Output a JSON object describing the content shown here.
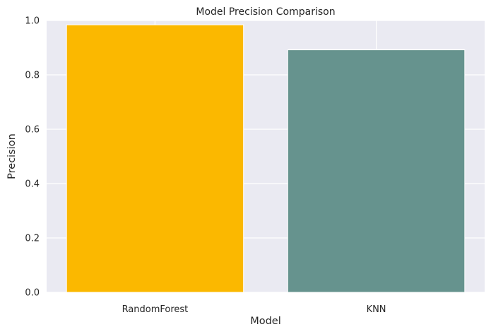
{
  "chart_data": {
    "type": "bar",
    "title": "Model Precision Comparison",
    "xlabel": "Model",
    "ylabel": "Precision",
    "categories": [
      "RandomForest",
      "KNN"
    ],
    "values": [
      0.984,
      0.892
    ],
    "bar_colors": [
      "#FBB800",
      "#66938E"
    ],
    "ylim": [
      0,
      1.0
    ],
    "yticks": [
      "0.0",
      "0.2",
      "0.4",
      "0.6",
      "0.8",
      "1.0"
    ],
    "grid": true,
    "background": "#EAEAF2",
    "grid_color": "#FFFFFF"
  }
}
